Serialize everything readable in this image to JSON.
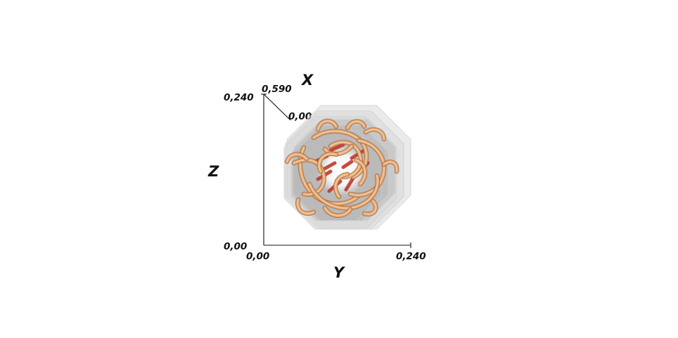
{
  "axes": {
    "x": {
      "title": "X",
      "min_label": "0,00",
      "max_label": "0,590"
    },
    "y": {
      "title": "Y",
      "min_label": "0,00",
      "max_label": "0,240"
    },
    "z": {
      "title": "Z",
      "min_label": "0,00",
      "max_label": "0,240"
    }
  },
  "colors": {
    "background": "#ffffff",
    "axis": "#111111",
    "housing_outer": "#d8d8d8",
    "housing_inner": "#b4b4b4",
    "tube": "#e3a873",
    "tube_shadow": "#a8693a",
    "tube_core": "#c0392b",
    "core_glow": "#ffffff"
  },
  "icons": {
    "model": "coiled-tube-bundle-icon"
  }
}
